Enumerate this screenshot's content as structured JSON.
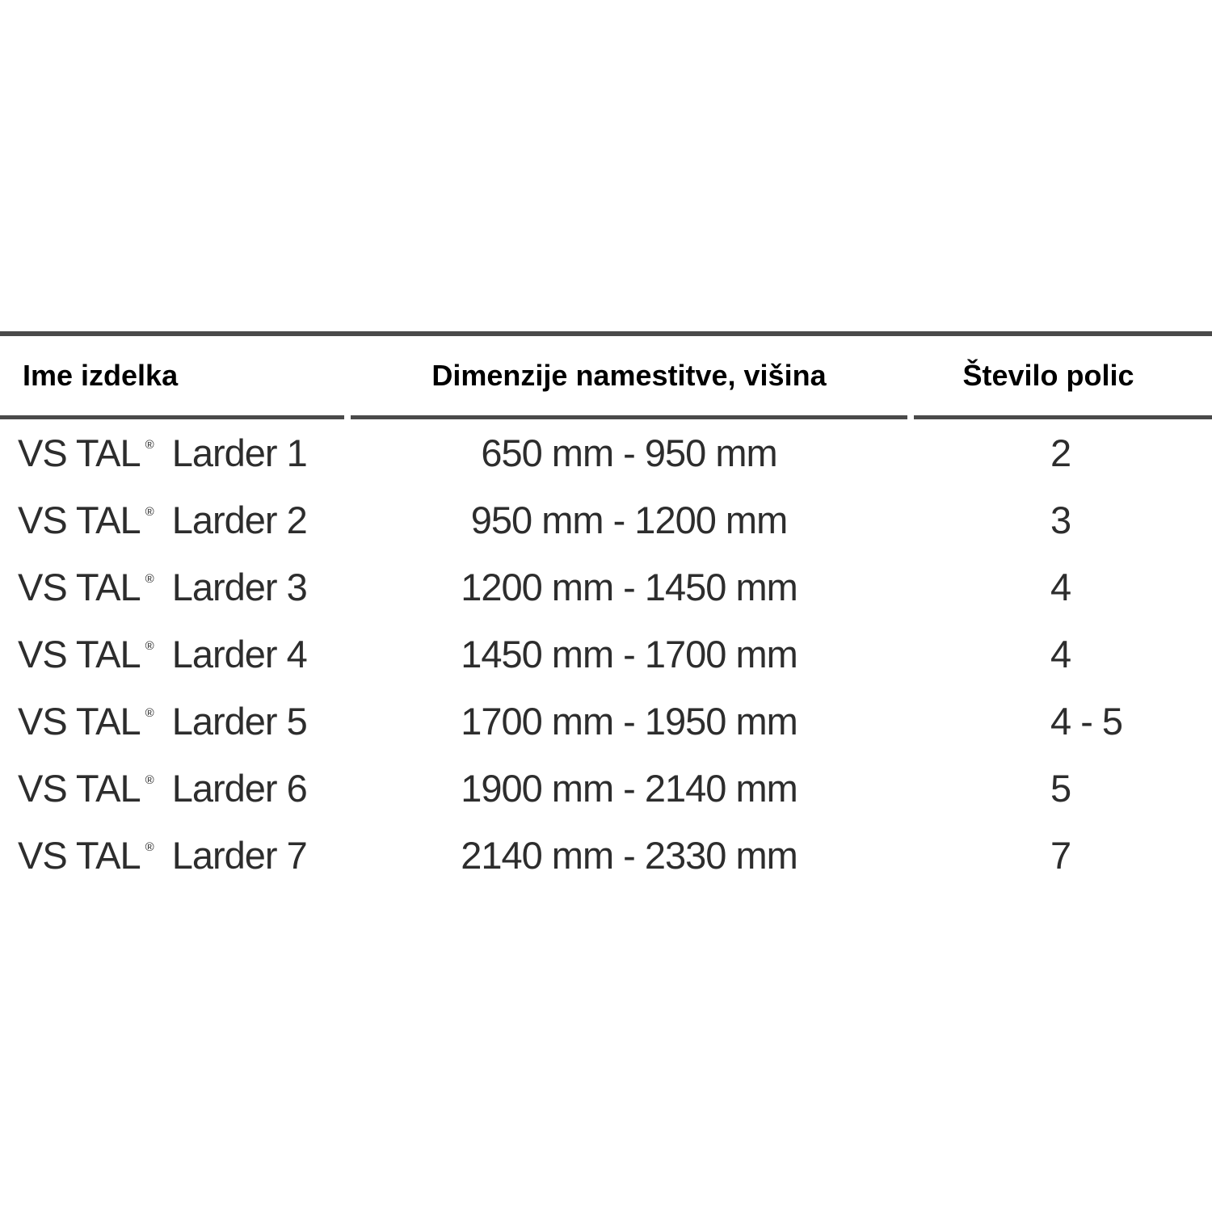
{
  "table": {
    "columns": [
      {
        "label": "Ime izdelka"
      },
      {
        "label": "Dimenzije namestitve, višina"
      },
      {
        "label": "Število polic"
      }
    ],
    "rows": [
      {
        "brand": "VS TAL",
        "reg": "®",
        "model": "Larder 1",
        "dimensions": "650 mm - 950 mm",
        "shelves": "2"
      },
      {
        "brand": "VS TAL",
        "reg": "®",
        "model": "Larder 2",
        "dimensions": "950 mm - 1200 mm",
        "shelves": "3"
      },
      {
        "brand": "VS TAL",
        "reg": "®",
        "model": "Larder 3",
        "dimensions": "1200 mm - 1450 mm",
        "shelves": "4"
      },
      {
        "brand": "VS TAL",
        "reg": "®",
        "model": "Larder 4",
        "dimensions": "1450 mm - 1700 mm",
        "shelves": "4"
      },
      {
        "brand": "VS TAL",
        "reg": "®",
        "model": "Larder 5",
        "dimensions": "1700 mm - 1950 mm",
        "shelves": "4 - 5"
      },
      {
        "brand": "VS TAL",
        "reg": "®",
        "model": "Larder 6",
        "dimensions": "1900 mm - 2140 mm",
        "shelves": "5"
      },
      {
        "brand": "VS TAL",
        "reg": "®",
        "model": "Larder 7",
        "dimensions": "2140 mm - 2330 mm",
        "shelves": "7"
      }
    ]
  },
  "colors": {
    "background": "#ffffff",
    "rule": "#4a4a4a",
    "header_text": "#000000",
    "body_text": "#2d2d2d"
  }
}
